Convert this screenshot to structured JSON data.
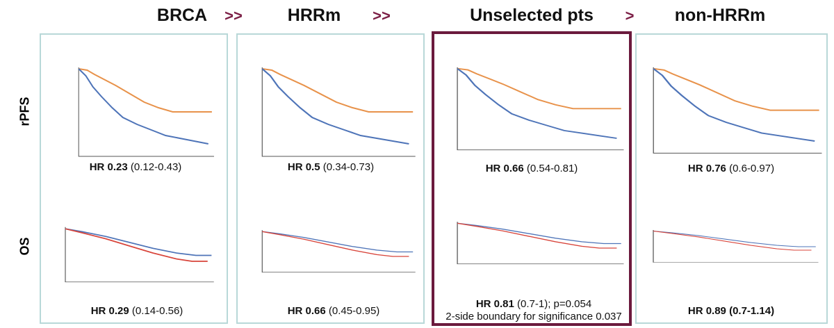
{
  "header": {
    "columns": [
      "BRCA",
      "HRRm",
      "Unselected pts",
      "non-HRRm"
    ],
    "arrows": [
      ">>",
      ">>",
      ">"
    ]
  },
  "rows": [
    "rPFS",
    "OS"
  ],
  "panels": [
    {
      "rpfs": {
        "hr": "HR 0.23",
        "ci": "(0.12-0.43)"
      },
      "os": {
        "hr": "HR 0.29",
        "ci": "(0.14-0.56)"
      }
    },
    {
      "rpfs": {
        "hr": "HR 0.5",
        "ci": "(0.34-0.73)"
      },
      "os": {
        "hr": "HR 0.66",
        "ci": "(0.45-0.95)"
      }
    },
    {
      "rpfs": {
        "hr": "HR 0.66",
        "ci": "(0.54-0.81)"
      },
      "os": {
        "hr": "HR 0.81",
        "ci": "(0.7-1); p=0.054",
        "note": "2-side boundary for significance 0.037"
      }
    },
    {
      "rpfs": {
        "hr": "HR 0.76",
        "ci": "(0.6-0.97)"
      },
      "os": {
        "hr": "HR 0.89",
        "ci": "(0.7-1.14)"
      }
    }
  ]
}
